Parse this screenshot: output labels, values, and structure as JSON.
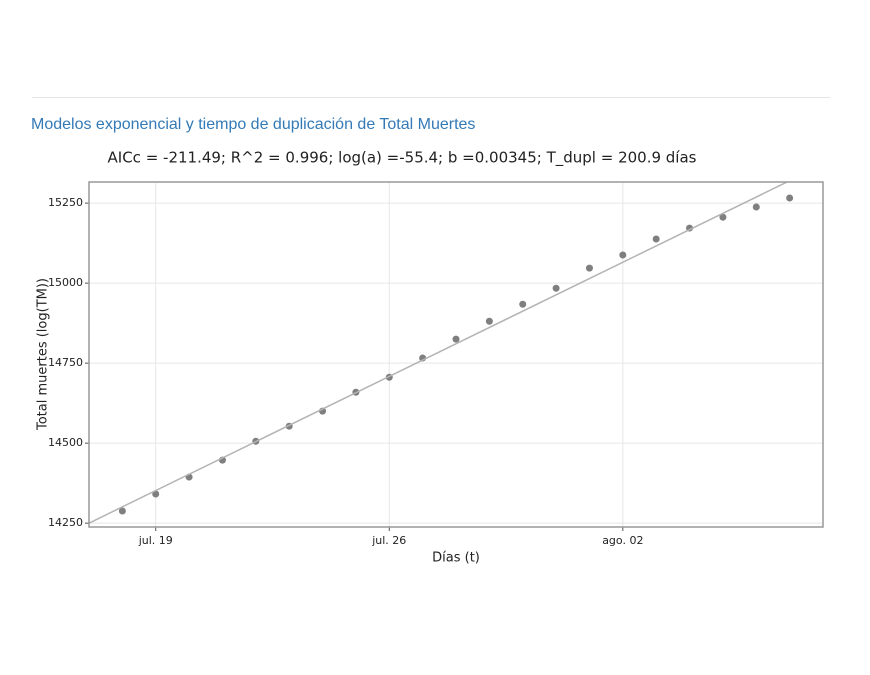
{
  "header": {
    "title": "Modelos exponencial y tiempo de duplicación de Total Muertes"
  },
  "chart_data": {
    "type": "scatter",
    "title": "AICc = -211.49; R^2 = 0.996; log(a) =-55.4; b =0.00345; T_dupl = 200.9 días",
    "xlabel": "Días (t)",
    "ylabel": "Total muertes (log(TM))",
    "xlim": [
      "07-17",
      "08-08"
    ],
    "xticks": [
      {
        "value": "07-19",
        "label": "jul. 19"
      },
      {
        "value": "07-26",
        "label": "jul. 26"
      },
      {
        "value": "08-02",
        "label": "ago. 02"
      }
    ],
    "ylim": [
      14238,
      15316
    ],
    "yticks": [
      14250,
      14500,
      14750,
      15000,
      15250
    ],
    "grid": true,
    "series": [
      {
        "mode": "markers",
        "color": "#7f7f7f",
        "x": [
          "07-18",
          "07-19",
          "07-20",
          "07-21",
          "07-22",
          "07-23",
          "07-24",
          "07-25",
          "07-26",
          "07-27",
          "07-28",
          "07-29",
          "07-30",
          "07-31",
          "08-01",
          "08-02",
          "08-03",
          "08-04",
          "08-05",
          "08-06",
          "08-07"
        ],
        "values": [
          14288,
          14341,
          14394,
          14447,
          14506,
          14553,
          14600,
          14659,
          14706,
          14766,
          14825,
          14881,
          14934,
          14984,
          15047,
          15088,
          15138,
          15172,
          15206,
          15238,
          15266
        ]
      },
      {
        "mode": "lines",
        "color": "#b3b3b3",
        "x": [
          "07-17",
          "08-07"
        ],
        "values": [
          14250,
          15320
        ]
      }
    ]
  }
}
